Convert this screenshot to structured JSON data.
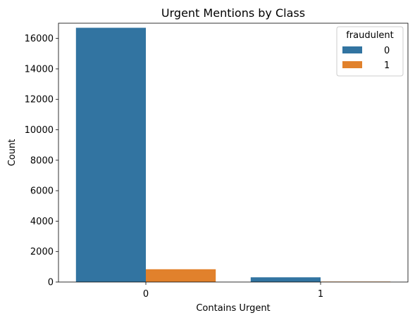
{
  "chart_data": {
    "type": "bar",
    "title": "Urgent Mentions by Class",
    "xlabel": "Contains Urgent",
    "ylabel": "Count",
    "categories": [
      "0",
      "1"
    ],
    "ylim": [
      0,
      17000
    ],
    "yticks": [
      0,
      2000,
      4000,
      6000,
      8000,
      10000,
      12000,
      14000,
      16000
    ],
    "yticklabels": [
      "0",
      "2000",
      "4000",
      "6000",
      "8000",
      "10000",
      "12000",
      "14000",
      "16000"
    ],
    "grid": false,
    "legend": {
      "title": "fraudulent",
      "placement": "top-right"
    },
    "series": [
      {
        "name": "0",
        "color": "#3274a1",
        "values": [
          16700,
          310
        ]
      },
      {
        "name": "1",
        "color": "#e1812c",
        "values": [
          840,
          30
        ]
      }
    ]
  }
}
